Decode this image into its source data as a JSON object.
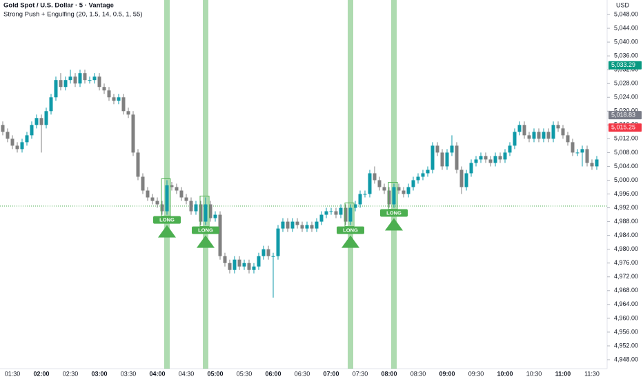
{
  "chart_data": {
    "type": "candlestick",
    "title": "Gold Spot / U.S. Dollar · 5 · Vantage",
    "subtitle": "Strong Push + Engulfing (20, 1.5, 14, 0.5, 1, 55)",
    "currency": "USD",
    "up_color": "#0f9aa8",
    "down_color": "#808080",
    "categories": [
      null,
      null,
      "01:30",
      null,
      null,
      null,
      null,
      null,
      "02:00",
      null,
      null,
      null,
      null,
      null,
      "02:30",
      null,
      null,
      null,
      null,
      null,
      "03:00",
      null,
      null,
      null,
      null,
      null,
      "03:30",
      null,
      null,
      null,
      null,
      null,
      "04:00",
      null,
      null,
      null,
      null,
      null,
      "04:30",
      null,
      null,
      null,
      null,
      null,
      "05:00",
      null,
      null,
      null,
      null,
      null,
      "05:30",
      null,
      null,
      null,
      null,
      null,
      "06:00",
      null,
      null,
      null,
      null,
      null,
      "06:30",
      null,
      null,
      null,
      null,
      null,
      "07:00",
      null,
      null,
      null,
      null,
      null,
      "07:30",
      null,
      null,
      null,
      null,
      null,
      "08:00",
      null,
      null,
      null,
      null,
      null,
      "08:30",
      null,
      null,
      null,
      null,
      null,
      "09:00",
      null,
      null,
      null,
      null,
      null,
      "09:30",
      null,
      null,
      null,
      null,
      null,
      "10:00",
      null,
      null,
      null,
      null,
      null,
      "10:30",
      null,
      null,
      null,
      null,
      null,
      "11:00",
      null,
      null,
      null,
      null,
      null,
      "11:30",
      null
    ],
    "open": [
      5016,
      5014,
      5012,
      5010,
      5009,
      5011,
      5013,
      5016,
      5018,
      5016,
      5020,
      5024,
      5029,
      5027,
      5029,
      5030,
      5028,
      5031,
      5029,
      5029,
      5030,
      5027,
      5026,
      5024,
      5023,
      5024,
      5020,
      5019,
      5008,
      5001,
      4997,
      4995,
      4994,
      4993,
      4991,
      4998.5,
      4998,
      4997,
      4995,
      4994,
      4991,
      4993,
      4988,
      4993,
      4989,
      4990,
      4978,
      4976,
      4974,
      4977,
      4975,
      4976,
      4974,
      4975,
      4978,
      4980,
      4978,
      4978,
      4986,
      4988,
      4986,
      4988,
      4987,
      4986,
      4987,
      4986,
      4988,
      4990,
      4991,
      4991,
      4990,
      4992,
      4988,
      4992,
      4993,
      4996,
      4996,
      5002,
      5000,
      4998,
      4997,
      4993,
      4998,
      4997,
      4996,
      4998,
      5000,
      5001,
      5002,
      5003,
      5010,
      5008,
      5004,
      5008,
      5010,
      5003,
      4998,
      5002,
      5005,
      5006,
      5007,
      5006,
      5005,
      5007,
      5006,
      5008,
      5010,
      5014,
      5016,
      5013,
      5012,
      5014,
      5012,
      5014,
      5012,
      5016,
      5015,
      5013,
      5011,
      5008,
      5008,
      5009,
      5005,
      5004
    ],
    "high": [
      5017,
      5015,
      5013,
      5011,
      5012,
      5014,
      5017,
      5019,
      5019,
      5021,
      5025,
      5030,
      5031,
      5030,
      5032,
      5031,
      5032,
      5032,
      5030,
      5031,
      5031,
      5028,
      5027,
      5025,
      5025,
      5025,
      5021,
      5020,
      5009,
      5002,
      4998,
      4996,
      4995,
      4994,
      5000,
      4999.5,
      4999,
      4998,
      4996,
      4995,
      4994,
      4994,
      4995,
      4994,
      4991,
      4991,
      4979,
      4977,
      4978,
      4978,
      4977,
      4977,
      4976,
      4979,
      4981,
      4981,
      4979,
      4987,
      4989,
      4989,
      4989,
      4989,
      4988,
      4988,
      4988,
      4989,
      4991,
      4992,
      4992,
      4992,
      4993,
      4993,
      4993,
      4994,
      4997,
      4997,
      5003,
      5004,
      5001,
      4999,
      4998,
      4999,
      4999,
      4998,
      4999,
      5001,
      5002,
      5003,
      5004,
      5011,
      5011,
      5009,
      5009,
      5013,
      5011,
      5004,
      5003,
      5006,
      5007,
      5008,
      5008,
      5007,
      5008,
      5008,
      5009,
      5011,
      5015,
      5017,
      5017,
      5014,
      5015,
      5015,
      5015,
      5015,
      5017,
      5017,
      5016,
      5014,
      5012,
      5009,
      5010,
      5010,
      5006,
      5007
    ],
    "low": [
      5013,
      5011,
      5009,
      5008,
      5008,
      5010,
      5012,
      5015,
      5008,
      5015,
      5019,
      5023,
      5026,
      5026,
      5028,
      5027,
      5027,
      5028,
      5028,
      5028,
      5026,
      5025,
      5023,
      5022,
      5022,
      5019,
      5018,
      5007,
      5000,
      4996,
      4994,
      4993,
      4992,
      4990,
      4990,
      4997,
      4996,
      4994,
      4993,
      4990,
      4990,
      4987,
      4987,
      4988,
      4988,
      4977,
      4975,
      4973,
      4973,
      4974,
      4974,
      4973,
      4973,
      4974,
      4977,
      4977,
      4966,
      4977,
      4985,
      4985,
      4985,
      4986,
      4985,
      4985,
      4985,
      4985,
      4987,
      4989,
      4990,
      4989,
      4989,
      4987,
      4987,
      4991,
      4992,
      4995,
      4995,
      4999,
      4997,
      4996,
      4992,
      4992,
      4996,
      4995,
      4995,
      4997,
      4999,
      5000,
      5001,
      5002,
      5007,
      5003,
      5003,
      5007,
      5002,
      4996,
      4997,
      5001,
      5004,
      5005,
      5005,
      5004,
      5004,
      5005,
      5005,
      5007,
      5009,
      5013,
      5012,
      5011,
      5011,
      5011,
      5011,
      5011,
      5011,
      5014,
      5012,
      5010,
      5007,
      5007,
      5004,
      5004,
      5003,
      5003
    ],
    "close": [
      5014,
      5012,
      5010,
      5009,
      5011,
      5013,
      5016,
      5018,
      5016,
      5020,
      5024,
      5029,
      5027,
      5029,
      5030,
      5028,
      5031,
      5029,
      5029,
      5030,
      5027,
      5026,
      5024,
      5023,
      5024,
      5020,
      5019,
      5008,
      5001,
      4997,
      4995,
      4994,
      4993,
      4991,
      4998.5,
      4998,
      4997,
      4995,
      4994,
      4991,
      4993,
      4988,
      4993,
      4989,
      4990,
      4978,
      4976,
      4974,
      4977,
      4975,
      4976,
      4974,
      4975,
      4978,
      4980,
      4978,
      4978,
      4986,
      4988,
      4986,
      4988,
      4987,
      4986,
      4987,
      4986,
      4988,
      4990,
      4991,
      4991,
      4990,
      4992,
      4988,
      4992,
      4993,
      4996,
      4996,
      5002,
      5000,
      4998,
      4997,
      4993,
      4998,
      4997,
      4996,
      4998,
      5000,
      5001,
      5002,
      5003,
      5010,
      5008,
      5004,
      5008,
      5010,
      5003,
      4998,
      5002,
      5005,
      5006,
      5007,
      5006,
      5005,
      5007,
      5006,
      5008,
      5010,
      5014,
      5016,
      5013,
      5012,
      5014,
      5012,
      5014,
      5012,
      5016,
      5015,
      5013,
      5011,
      5008,
      5008,
      5009,
      5005,
      5004,
      5006
    ],
    "signals": {
      "label": "LONG",
      "indices": [
        34,
        42,
        72,
        81
      ],
      "color": "#4caf50"
    },
    "price_line": 4992.5,
    "price_tags": [
      {
        "value": 5033.29,
        "label": "5,033.29",
        "color": "#089981"
      },
      {
        "value": 5018.83,
        "label": "5,018.83",
        "color": "#787b86"
      },
      {
        "value": 5015.25,
        "label": "5,015.25",
        "color": "#f23645"
      }
    ],
    "ylim": [
      4948,
      5048
    ],
    "yticks": [
      {
        "value": 5048,
        "label": "5,048.00"
      },
      {
        "value": 5044,
        "label": "5,044.00"
      },
      {
        "value": 5040,
        "label": "5,040.00"
      },
      {
        "value": 5036,
        "label": "5,036.00"
      },
      {
        "value": 5032,
        "label": "5,032.00"
      },
      {
        "value": 5028,
        "label": "5,028.00"
      },
      {
        "value": 5024,
        "label": "5,024.00"
      },
      {
        "value": 5020,
        "label": "5,020.00"
      },
      {
        "value": 5016,
        "label": "5,016.00"
      },
      {
        "value": 5012,
        "label": "5,012.00"
      },
      {
        "value": 5008,
        "label": "5,008.00"
      },
      {
        "value": 5004,
        "label": "5,004.00"
      },
      {
        "value": 5000,
        "label": "5,000.00"
      },
      {
        "value": 4996,
        "label": "4,996.00"
      },
      {
        "value": 4992,
        "label": "4,992.00"
      },
      {
        "value": 4988,
        "label": "4,988.00"
      },
      {
        "value": 4984,
        "label": "4,984.00"
      },
      {
        "value": 4980,
        "label": "4,980.00"
      },
      {
        "value": 4976,
        "label": "4,976.00"
      },
      {
        "value": 4972,
        "label": "4,972.00"
      },
      {
        "value": 4968,
        "label": "4,968.00"
      },
      {
        "value": 4964,
        "label": "4,964.00"
      },
      {
        "value": 4960,
        "label": "4,960.00"
      },
      {
        "value": 4956,
        "label": "4,956.00"
      },
      {
        "value": 4952,
        "label": "4,952.00"
      },
      {
        "value": 4948,
        "label": "4,948.00"
      }
    ]
  }
}
